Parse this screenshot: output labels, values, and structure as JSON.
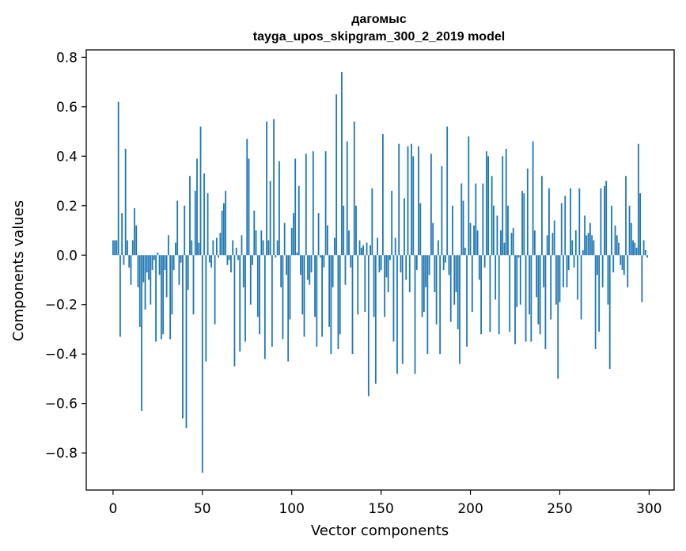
{
  "chart_data": {
    "type": "bar",
    "title": "дагомыс",
    "subtitle": "tayga_upos_skipgram_300_2_2019 model",
    "xlabel": "Vector components",
    "ylabel": "Components values",
    "xlim": [
      -15,
      314
    ],
    "ylim": [
      -0.95,
      0.83
    ],
    "x_ticks": [
      0,
      50,
      100,
      150,
      200,
      250,
      300
    ],
    "y_ticks": [
      -0.8,
      -0.6,
      -0.4,
      -0.2,
      0.0,
      0.2,
      0.4,
      0.6,
      0.8
    ],
    "x_tick_labels": [
      "0",
      "50",
      "100",
      "150",
      "200",
      "250",
      "300"
    ],
    "y_tick_labels": [
      "−0.8",
      "−0.6",
      "−0.4",
      "−0.2",
      "0.0",
      "0.2",
      "0.4",
      "0.6",
      "0.8"
    ],
    "grid": false,
    "bar_color": "#1f77b4",
    "x": "0..299 (component index)",
    "values": [
      0.06,
      0.06,
      0.06,
      0.62,
      -0.33,
      0.17,
      -0.04,
      0.43,
      0.06,
      -0.05,
      -0.12,
      0.06,
      0.19,
      0.12,
      -0.13,
      -0.29,
      -0.63,
      -0.11,
      -0.22,
      -0.07,
      -0.1,
      -0.2,
      -0.06,
      -0.02,
      -0.35,
      0.01,
      -0.08,
      -0.34,
      -0.32,
      -0.06,
      -0.17,
      0.08,
      -0.34,
      -0.24,
      -0.06,
      0.05,
      0.22,
      -0.12,
      -0.03,
      -0.66,
      0.2,
      -0.7,
      -0.14,
      0.32,
      0.06,
      -0.24,
      0.26,
      0.39,
      0.05,
      0.52,
      -0.88,
      0.33,
      -0.43,
      0.25,
      -0.03,
      -0.05,
      0.06,
      -0.28,
      0.07,
      -0.01,
      0.09,
      0.18,
      0.21,
      0.26,
      -0.04,
      -0.02,
      -0.07,
      0.06,
      -0.45,
      0.03,
      -0.02,
      -0.39,
      0.08,
      -0.13,
      -0.35,
      0.47,
      0.39,
      -0.2,
      -0.04,
      0.18,
      0.1,
      -0.25,
      -0.32,
      0.1,
      0.06,
      -0.42,
      0.54,
      0.06,
      0.3,
      -0.37,
      0.55,
      -0.01,
      0.06,
      0.38,
      -0.13,
      -0.34,
      0.13,
      -0.08,
      -0.43,
      -0.26,
      0.11,
      0.17,
      0.39,
      0.01,
      0.28,
      -0.08,
      -0.24,
      -0.33,
      0.41,
      -0.1,
      -0.12,
      -0.07,
      0.42,
      -0.25,
      -0.37,
      0.17,
      -0.01,
      -0.33,
      -0.05,
      0.42,
      0.12,
      -0.29,
      -0.4,
      -0.13,
      0.07,
      0.65,
      -0.38,
      -0.32,
      0.74,
      0.2,
      -0.12,
      0.46,
      0.1,
      -0.05,
      -0.4,
      0.54,
      0.2,
      -0.24,
      0.06,
      0.03,
      0.04,
      -0.23,
      0.05,
      -0.57,
      0.04,
      0.27,
      -0.25,
      -0.52,
      0.07,
      -0.07,
      -0.06,
      0.49,
      -0.25,
      -0.09,
      -0.15,
      -0.02,
      0.26,
      -0.35,
      0.07,
      -0.48,
      0.45,
      -0.07,
      -0.44,
      0.23,
      -0.1,
      0.44,
      -0.15,
      0.45,
      0.4,
      -0.48,
      -0.06,
      0.44,
      0.21,
      -0.25,
      -0.23,
      -0.13,
      -0.4,
      -0.08,
      0.41,
      0.13,
      -0.15,
      -0.28,
      0.06,
      -0.4,
      0.36,
      -0.06,
      -0.03,
      0.52,
      -0.08,
      -0.27,
      0.2,
      -0.2,
      -0.15,
      -0.3,
      -0.44,
      0.29,
      0.22,
      0.03,
      -0.37,
      0.48,
      0.13,
      -0.23,
      0.12,
      0.29,
      0.1,
      -0.1,
      -0.32,
      0.29,
      -0.05,
      0.42,
      0.4,
      -0.31,
      0.32,
      0.2,
      -0.18,
      0.16,
      -0.32,
      0.1,
      0.4,
      0.05,
      0.43,
      0.2,
      -0.31,
      0.09,
      0.11,
      -0.36,
      -0.21,
      -0.01,
      -0.2,
      0.26,
      0.25,
      -0.35,
      0.35,
      -0.24,
      -0.35,
      0.46,
      0.1,
      -0.17,
      -0.28,
      -0.32,
      0.32,
      -0.13,
      -0.38,
      0.08,
      0.27,
      -0.26,
      0.09,
      0.14,
      -0.2,
      -0.5,
      -0.19,
      0.21,
      -0.13,
      0.24,
      -0.13,
      -0.06,
      0.27,
      0.06,
      -0.05,
      0.1,
      -0.18,
      0.27,
      -0.26,
      0.02,
      0.16,
      0.08,
      0.09,
      0.13,
      0.08,
      0.06,
      -0.38,
      -0.08,
      -0.31,
      0.27,
      -0.13,
      0.28,
      0.3,
      -0.2,
      -0.46,
      0.2,
      -0.07,
      0.12,
      0.08,
      0.05,
      -0.04,
      -0.06,
      -0.08,
      0.32,
      -0.13,
      0.2,
      0.13,
      0.06,
      0.05,
      0.03,
      0.45,
      0.25,
      -0.19,
      0.06,
      0.02,
      -0.01
    ]
  }
}
